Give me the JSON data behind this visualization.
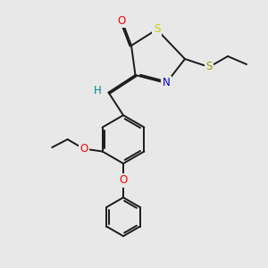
{
  "bg_color": "#e8e8e8",
  "bond_color": "#1a1a1a",
  "lw": 1.4,
  "dbo": 0.055,
  "fs": 8.5,
  "colors": {
    "O": "#ff0000",
    "N": "#0000cc",
    "S_yellow": "#cccc00",
    "S_dark": "#999900",
    "H": "#008888",
    "bg": "#e8e8e8"
  }
}
